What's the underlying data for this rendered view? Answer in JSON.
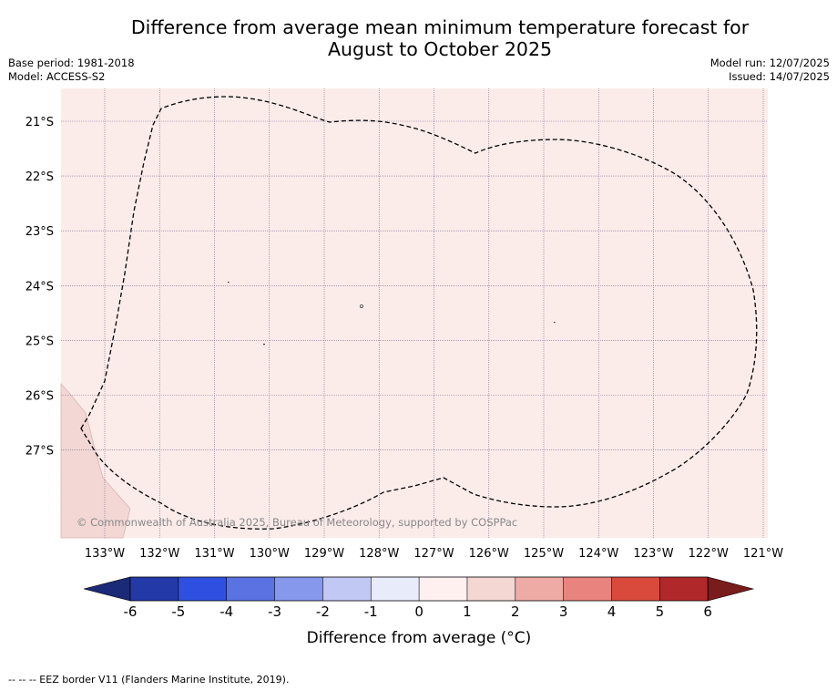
{
  "title": {
    "line1": "Difference from average mean minimum temperature forecast for",
    "line2": "August to October 2025"
  },
  "meta": {
    "base_period": "Base period: 1981-2018",
    "model": "Model: ACCESS-S2",
    "model_run": "Model run: 12/07/2025",
    "issued": "Issued: 14/07/2025"
  },
  "map": {
    "lat_labels": [
      "21°S",
      "22°S",
      "23°S",
      "24°S",
      "25°S",
      "26°S",
      "27°S"
    ],
    "lon_labels": [
      "133°W",
      "132°W",
      "131°W",
      "130°W",
      "129°W",
      "128°W",
      "127°W",
      "126°W",
      "125°W",
      "124°W",
      "123°W",
      "122°W",
      "121°W"
    ],
    "ocean_anomaly_class": "0 to 1",
    "ocean_color": "#fbecea",
    "land_color": "#f2d7d4",
    "copyright": "© Commonwealth of Australia 2025, Bureau of Meteorology, supported by COSPPac"
  },
  "colorbar": {
    "tick_labels": [
      "-6",
      "-5",
      "-4",
      "-3",
      "-2",
      "-1",
      "0",
      "1",
      "2",
      "3",
      "4",
      "5",
      "6"
    ],
    "colors": [
      "#2439a8",
      "#2f4fe0",
      "#5b72e2",
      "#8598ec",
      "#c1c8f3",
      "#e8ebfa",
      "#fdf0ee",
      "#f4d6d3",
      "#eeaba6",
      "#e9837d",
      "#d94a3d",
      "#b0282a"
    ],
    "extend_low_color": "#1a2a78",
    "extend_high_color": "#7a1c1c",
    "label": "Difference from average (°C)"
  },
  "footnote": "-- -- -- EEZ border V11 (Flanders Marine Institute, 2019)."
}
